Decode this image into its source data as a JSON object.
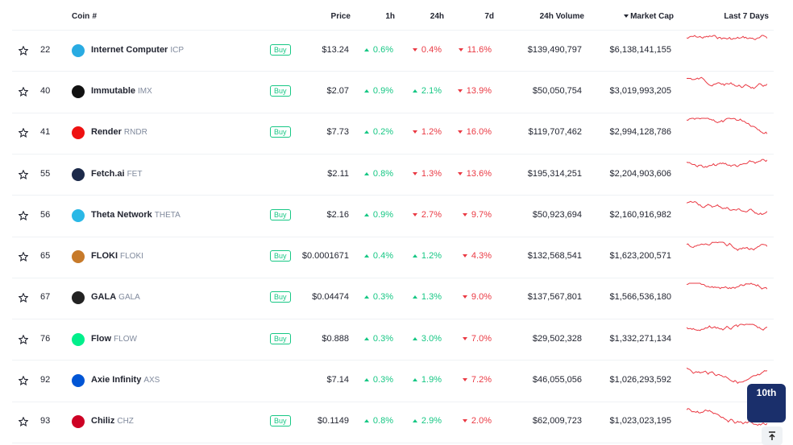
{
  "table": {
    "columns": [
      "#",
      "Coin",
      "Price",
      "1h",
      "24h",
      "7d",
      "24h Volume",
      "Market Cap",
      "Last 7 Days"
    ],
    "sorted_column_indicator": "down",
    "buy_label": "Buy",
    "rows": [
      {
        "rank": "22",
        "name": "Internet Computer",
        "symbol": "ICP",
        "buy": true,
        "price": "$13.24",
        "h1": {
          "text": "0.6%",
          "trend": "up"
        },
        "h24": {
          "text": "0.4%",
          "trend": "down"
        },
        "d7": {
          "text": "11.6%",
          "trend": "down"
        },
        "volume": "$139,490,797",
        "market_cap": "$6,138,141,155"
      },
      {
        "rank": "40",
        "name": "Immutable",
        "symbol": "IMX",
        "buy": true,
        "price": "$2.07",
        "h1": {
          "text": "0.9%",
          "trend": "up"
        },
        "h24": {
          "text": "2.1%",
          "trend": "up"
        },
        "d7": {
          "text": "13.9%",
          "trend": "down"
        },
        "volume": "$50,050,754",
        "market_cap": "$3,019,993,205"
      },
      {
        "rank": "41",
        "name": "Render",
        "symbol": "RNDR",
        "buy": true,
        "price": "$7.73",
        "h1": {
          "text": "0.2%",
          "trend": "up"
        },
        "h24": {
          "text": "1.2%",
          "trend": "down"
        },
        "d7": {
          "text": "16.0%",
          "trend": "down"
        },
        "volume": "$119,707,462",
        "market_cap": "$2,994,128,786"
      },
      {
        "rank": "55",
        "name": "Fetch.ai",
        "symbol": "FET",
        "buy": false,
        "price": "$2.11",
        "h1": {
          "text": "0.8%",
          "trend": "up"
        },
        "h24": {
          "text": "1.3%",
          "trend": "down"
        },
        "d7": {
          "text": "13.6%",
          "trend": "down"
        },
        "volume": "$195,314,251",
        "market_cap": "$2,204,903,606"
      },
      {
        "rank": "56",
        "name": "Theta Network",
        "symbol": "THETA",
        "buy": true,
        "price": "$2.16",
        "h1": {
          "text": "0.9%",
          "trend": "up"
        },
        "h24": {
          "text": "2.7%",
          "trend": "down"
        },
        "d7": {
          "text": "9.7%",
          "trend": "down"
        },
        "volume": "$50,923,694",
        "market_cap": "$2,160,916,982"
      },
      {
        "rank": "65",
        "name": "FLOKI",
        "symbol": "FLOKI",
        "buy": true,
        "price": "$0.0001671",
        "h1": {
          "text": "0.4%",
          "trend": "up"
        },
        "h24": {
          "text": "1.2%",
          "trend": "up"
        },
        "d7": {
          "text": "4.3%",
          "trend": "down"
        },
        "volume": "$132,568,541",
        "market_cap": "$1,623,200,571"
      },
      {
        "rank": "67",
        "name": "GALA",
        "symbol": "GALA",
        "buy": true,
        "price": "$0.04474",
        "h1": {
          "text": "0.3%",
          "trend": "up"
        },
        "h24": {
          "text": "1.3%",
          "trend": "up"
        },
        "d7": {
          "text": "9.0%",
          "trend": "down"
        },
        "volume": "$137,567,801",
        "market_cap": "$1,566,536,180"
      },
      {
        "rank": "76",
        "name": "Flow",
        "symbol": "FLOW",
        "buy": true,
        "price": "$0.888",
        "h1": {
          "text": "0.3%",
          "trend": "up"
        },
        "h24": {
          "text": "3.0%",
          "trend": "up"
        },
        "d7": {
          "text": "7.0%",
          "trend": "down"
        },
        "volume": "$29,502,328",
        "market_cap": "$1,332,271,134"
      },
      {
        "rank": "92",
        "name": "Axie Infinity",
        "symbol": "AXS",
        "buy": false,
        "price": "$7.14",
        "h1": {
          "text": "0.3%",
          "trend": "up"
        },
        "h24": {
          "text": "1.9%",
          "trend": "up"
        },
        "d7": {
          "text": "7.2%",
          "trend": "down"
        },
        "volume": "$46,055,056",
        "market_cap": "$1,026,293,592"
      },
      {
        "rank": "93",
        "name": "Chiliz",
        "symbol": "CHZ",
        "buy": true,
        "price": "$0.1149",
        "h1": {
          "text": "0.8%",
          "trend": "up"
        },
        "h24": {
          "text": "2.9%",
          "trend": "up"
        },
        "d7": {
          "text": "2.0%",
          "trend": "down"
        },
        "volume": "$62,009,723",
        "market_cap": "$1,023,023,195"
      }
    ]
  },
  "corner_badge": "10th"
}
